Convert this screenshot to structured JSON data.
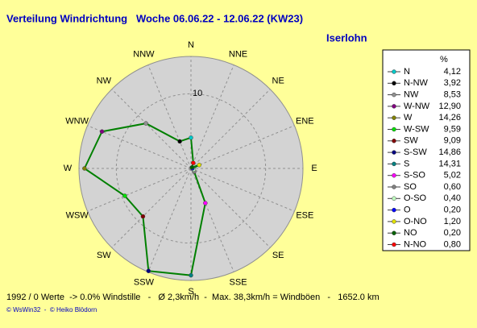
{
  "chart_data": {
    "type": "radar",
    "title": "Verteilung Windrichtung   Woche 06.06.22 - 12.06.22 (KW23)",
    "subtitle": "Iserlohn",
    "categories": [
      "N",
      "NNE",
      "NE",
      "ENE",
      "E",
      "ESE",
      "SE",
      "SSE",
      "S",
      "SSW",
      "SW",
      "WSW",
      "W",
      "WNW",
      "NW",
      "NNW"
    ],
    "rlim": [
      0,
      15
    ],
    "rticks": [
      10
    ],
    "line_color": "#008000",
    "legend_header": "%",
    "legend_names": [
      "N",
      "N-NW",
      "NW",
      "W-NW",
      "W",
      "W-SW",
      "SW",
      "S-SW",
      "S",
      "S-SO",
      "SO",
      "O-SO",
      "O",
      "O-NO",
      "NO",
      "N-NO"
    ],
    "colors": [
      "#00c8c8",
      "#000000",
      "#909090",
      "#800080",
      "#808000",
      "#00e000",
      "#800000",
      "#000080",
      "#008080",
      "#ff00ff",
      "#808080",
      "#c0ffc0",
      "#0000ff",
      "#e0e000",
      "#006000",
      "#ff0000"
    ],
    "values": [
      4.12,
      3.92,
      8.53,
      12.9,
      14.26,
      9.59,
      9.09,
      14.86,
      14.31,
      5.02,
      0.6,
      0.4,
      0.2,
      1.2,
      0.2,
      0.8
    ],
    "value_labels": [
      "4,12",
      "3,92",
      "8,53",
      "12,90",
      "14,26",
      "9,59",
      "9,09",
      "14,86",
      "14,31",
      "5,02",
      "0,60",
      "0,40",
      "0,20",
      "1,20",
      "0,20",
      "0,80"
    ],
    "footer": "1992 / 0 Werte  -> 0.0% Windstille   -   Ø 2,3km/h  -  Max. 38,3km/h = Windböen   -   1652.0 km",
    "copyright": "© WsWin32  -  © Heiko Blödorn"
  }
}
